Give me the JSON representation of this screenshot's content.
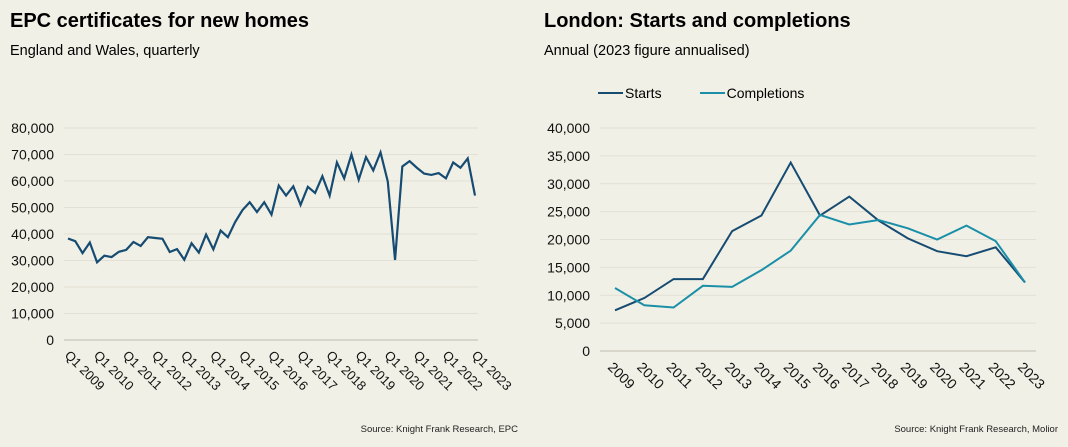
{
  "chart_data": [
    {
      "type": "line",
      "title": "EPC certificates for new homes",
      "subtitle": "England and Wales, quarterly",
      "source": "Source: Knight Frank Research, EPC",
      "xlabel": "",
      "ylabel": "",
      "ylim": [
        0,
        80000
      ],
      "yticks": [
        0,
        10000,
        20000,
        30000,
        40000,
        50000,
        60000,
        70000,
        80000
      ],
      "ytick_labels": [
        "0",
        "10,000",
        "20,000",
        "30,000",
        "40,000",
        "50,000",
        "60,000",
        "70,000",
        "80,000"
      ],
      "xtick_labels": [
        "Q1 2009",
        "Q1 2010",
        "Q1 2011",
        "Q1 2012",
        "Q1 2013",
        "Q1 2014",
        "Q1 2015",
        "Q1 2016",
        "Q1 2017",
        "Q1 2018",
        "Q1 2019",
        "Q1 2020",
        "Q1 2021",
        "Q1 2022",
        "Q1 2023"
      ],
      "grid": true,
      "legend": "none",
      "series": [
        {
          "name": "EPC certificates",
          "color": "#164b72",
          "values": [
            38300,
            37300,
            32800,
            36800,
            29300,
            31800,
            31300,
            33300,
            34000,
            37000,
            35500,
            38800,
            38500,
            38200,
            33200,
            34300,
            30300,
            36500,
            33000,
            39800,
            34200,
            41300,
            38800,
            44500,
            49000,
            52000,
            48300,
            52000,
            47300,
            58300,
            54500,
            58000,
            51000,
            57800,
            55500,
            61800,
            54500,
            67000,
            61000,
            70000,
            60500,
            69000,
            64000,
            70800,
            59800,
            30200,
            65500,
            67500,
            65000,
            62800,
            62300,
            63000,
            61000,
            67000,
            65000,
            68500,
            54500
          ]
        }
      ]
    },
    {
      "type": "line",
      "title": "London: Starts and completions",
      "subtitle": "Annual (2023 figure annualised)",
      "source": "Source: Knight Frank Research, Molior",
      "xlabel": "",
      "ylabel": "",
      "ylim": [
        0,
        40000
      ],
      "yticks": [
        0,
        5000,
        10000,
        15000,
        20000,
        25000,
        30000,
        35000,
        40000
      ],
      "ytick_labels": [
        "0",
        "5,000",
        "10,000",
        "15,000",
        "20,000",
        "25,000",
        "30,000",
        "35,000",
        "40,000"
      ],
      "categories": [
        "2009",
        "2010",
        "2011",
        "2012",
        "2013",
        "2014",
        "2015",
        "2016",
        "2017",
        "2018",
        "2019",
        "2020",
        "2021",
        "2022",
        "2023"
      ],
      "grid": true,
      "legend": "top-left",
      "series": [
        {
          "name": "Starts",
          "color": "#164b72",
          "values": [
            7300,
            9500,
            12900,
            12900,
            21500,
            24300,
            33800,
            24300,
            27700,
            23400,
            20200,
            17900,
            17000,
            18600,
            12300
          ]
        },
        {
          "name": "Completions",
          "color": "#1a8fa8",
          "values": [
            11300,
            8200,
            7800,
            11700,
            11500,
            14500,
            18000,
            24400,
            22700,
            23500,
            22000,
            20000,
            22500,
            19700,
            12300
          ]
        }
      ]
    }
  ]
}
